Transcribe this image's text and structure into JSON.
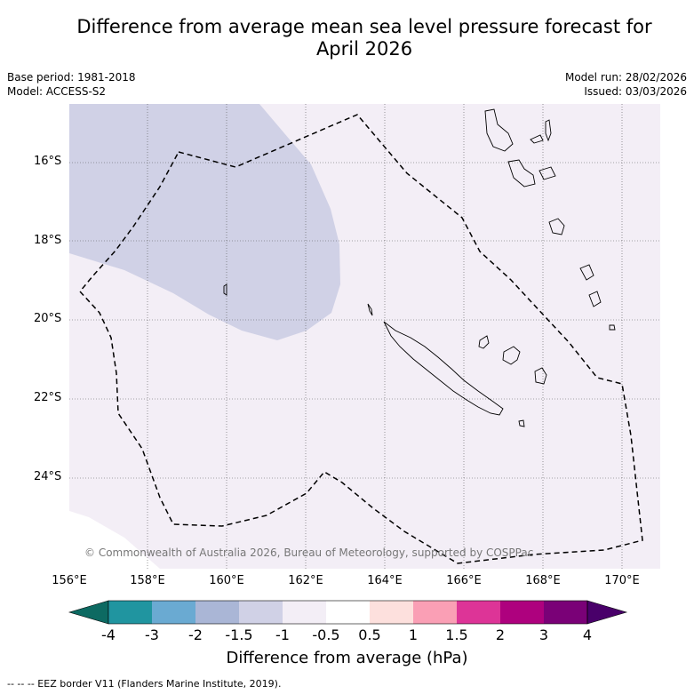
{
  "title_line1": "Difference from average mean sea level pressure forecast for",
  "title_line2": "April 2026",
  "base_period": "Base period: 1981-2018",
  "model": "Model: ACCESS-S2",
  "model_run": "Model run: 28/02/2026",
  "issued": "Issued: 03/03/2026",
  "copyright": "© Commonwealth of Australia 2026, Bureau of Meteorology, supported by COSPPac",
  "lat_labels": [
    "16°S",
    "18°S",
    "20°S",
    "22°S",
    "24°S"
  ],
  "lon_labels": [
    "156°E",
    "158°E",
    "160°E",
    "162°E",
    "164°E",
    "166°E",
    "168°E",
    "170°E"
  ],
  "colorbar": {
    "title": "Difference from average (hPa)",
    "tick_labels": [
      "-4",
      "-3",
      "-2",
      "-1.5",
      "-1",
      "-0.5",
      "0.5",
      "1",
      "1.5",
      "2",
      "3",
      "4"
    ],
    "colors": [
      "#0d6a62",
      "#2095a0",
      "#6aaad2",
      "#aab6d6",
      "#d0d1e6",
      "#f3eef6",
      "#ffffff",
      "#fde0dd",
      "#fa9fb5",
      "#dd3497",
      "#ae017e",
      "#7a0177",
      "#49006a"
    ]
  },
  "footer": "-- -- -- EEZ border V11 (Flanders Marine Institute, 2019)."
}
